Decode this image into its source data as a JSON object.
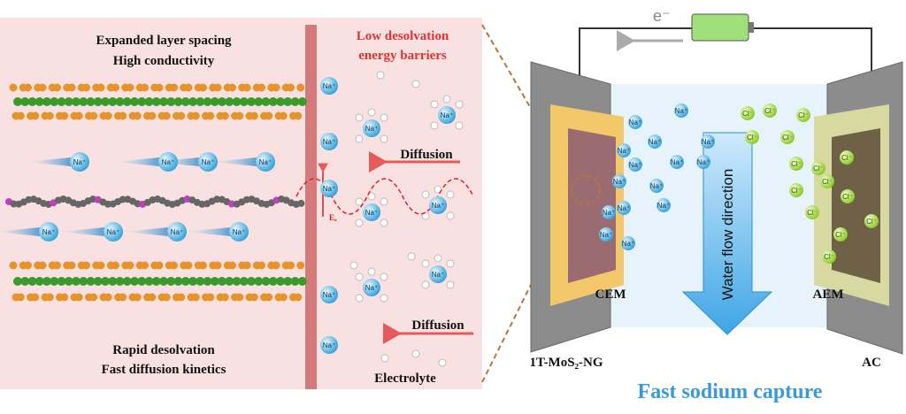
{
  "left_panel": {
    "top_labels": [
      "Expanded layer spacing",
      "High conductivity"
    ],
    "bottom_labels": [
      "Rapid desolvation",
      "Fast diffusion kinetics"
    ]
  },
  "middle_panel": {
    "title": [
      "Low desolvation",
      "energy barriers"
    ],
    "arrows": [
      "Diffusion",
      "Diffusion"
    ],
    "energy_label": "Eₐ",
    "footer": "Electrolyte"
  },
  "ions": {
    "sodium": "Na⁺",
    "chloride": "Cl⁻"
  },
  "device": {
    "electron": "e⁻",
    "flow": "Water flow direction",
    "membranes": [
      "CEM",
      "AEM"
    ],
    "electrodes": [
      "1T-MoS₂-NG",
      "AC"
    ],
    "caption": "Fast sodium capture"
  }
}
